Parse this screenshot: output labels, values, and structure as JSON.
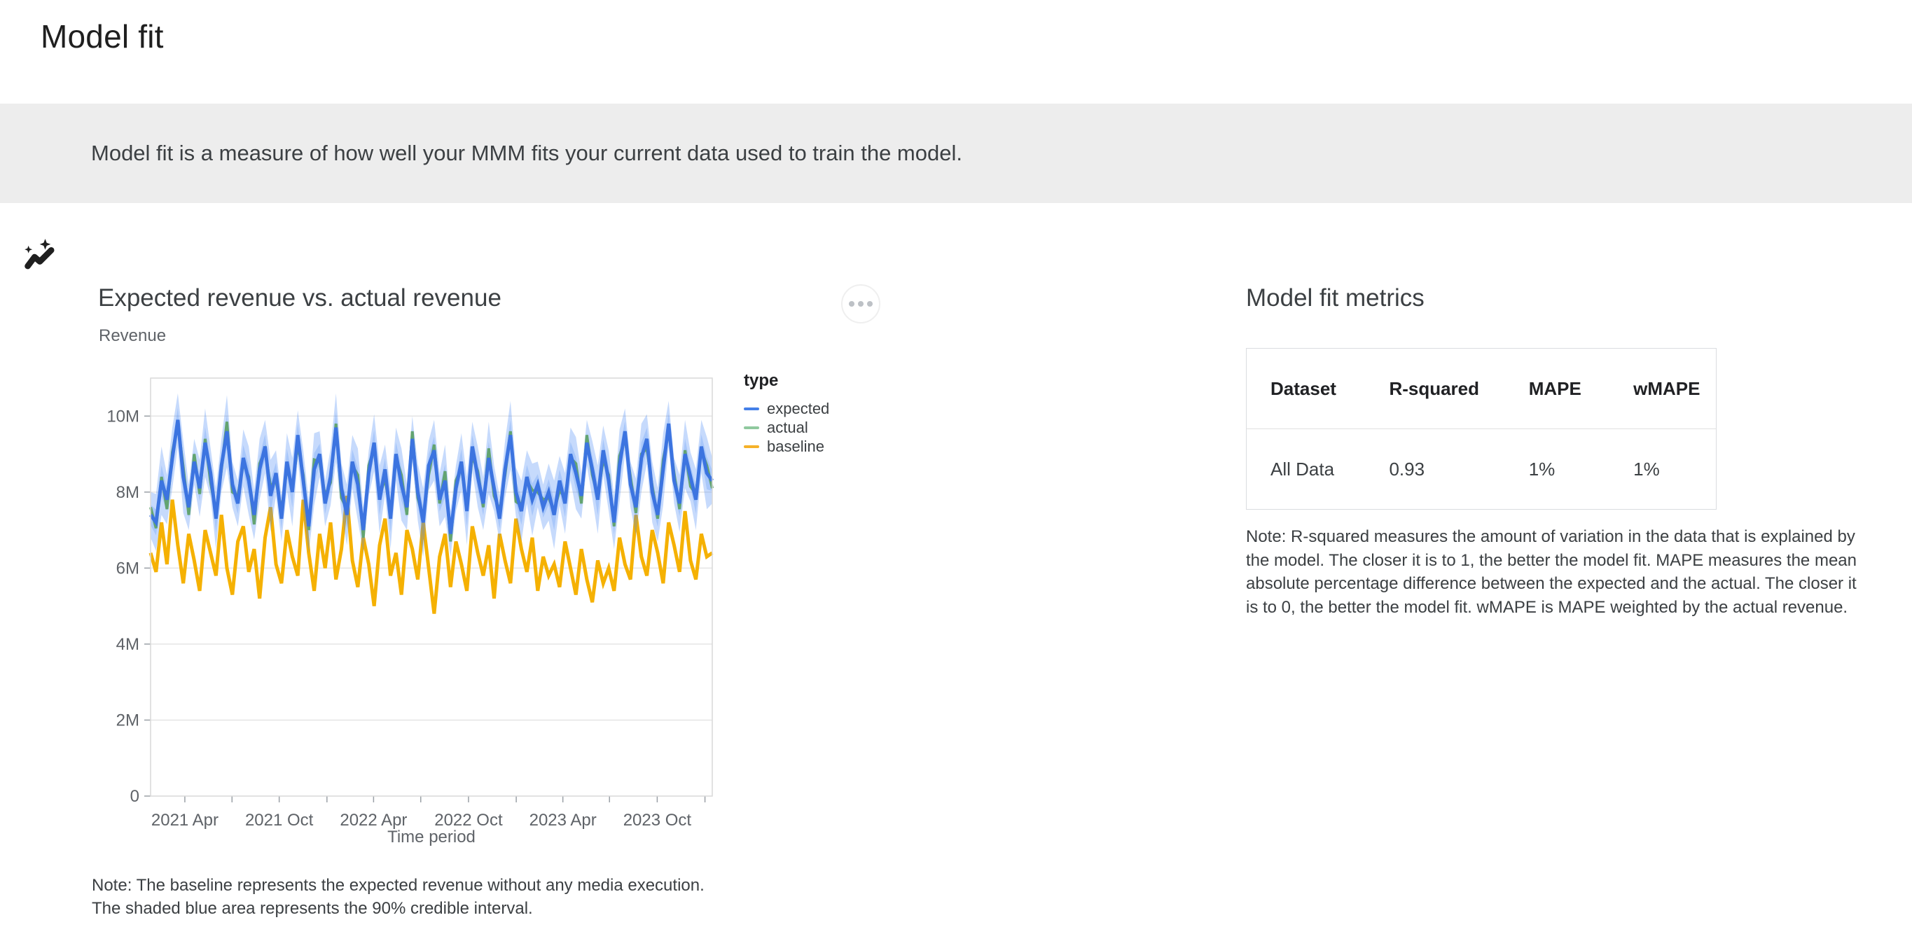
{
  "page": {
    "title": "Model fit"
  },
  "banner": {
    "icon": "insights-icon",
    "text": "Model fit is a measure of how well your MMM fits your current data used to train the model."
  },
  "chart_section": {
    "title": "Expected revenue vs. actual revenue",
    "subtitle": "Revenue",
    "note": "Note: The baseline represents the expected revenue without any media execution. The shaded blue area represents the 90% credible interval.",
    "more_button": "more options"
  },
  "chart_data": {
    "type": "line",
    "title": "Expected revenue vs. actual revenue",
    "ylabel": "Revenue",
    "xlabel": "Time period",
    "units": "revenue in millions",
    "x_range": "2021 Jan to 2024 Jan, weekly",
    "ylim": [
      0,
      11
    ],
    "grid": "horizontal only",
    "y_ticks": [
      {
        "value": 0,
        "label": "0"
      },
      {
        "value": 2,
        "label": "2M"
      },
      {
        "value": 4,
        "label": "4M"
      },
      {
        "value": 6,
        "label": "6M"
      },
      {
        "value": 8,
        "label": "8M"
      },
      {
        "value": 10,
        "label": "10M"
      }
    ],
    "x_ticks_major": [
      {
        "f": 0.061,
        "label": "2021 Apr"
      },
      {
        "f": 0.229,
        "label": "2021 Oct"
      },
      {
        "f": 0.397,
        "label": "2022 Apr"
      },
      {
        "f": 0.566,
        "label": "2022 Oct"
      },
      {
        "f": 0.734,
        "label": "2023 Apr"
      },
      {
        "f": 0.902,
        "label": "2023 Oct"
      }
    ],
    "x_ticks_minor": [
      0.145,
      0.314,
      0.481,
      0.651,
      0.817,
      0.987
    ],
    "legend": {
      "title": "type",
      "position": "right",
      "items": [
        {
          "label": "expected",
          "color": "#4480E8"
        },
        {
          "label": "actual",
          "color": "#8FC99E"
        },
        {
          "label": "baseline",
          "color": "#F5B129"
        }
      ]
    },
    "band": {
      "label": "90% credible interval",
      "color": "#4285F4",
      "outer_alpha": 0.3,
      "inner_alpha": 0.22
    },
    "line_colors": {
      "expected": "#3C74E0",
      "actual": "#63A471",
      "baseline": "#F5B102"
    },
    "series": {
      "expected": [
        7.4,
        7.2,
        8.3,
        7.8,
        8.9,
        9.9,
        8.4,
        7.6,
        8.8,
        8.1,
        9.3,
        8.5,
        7.3,
        8.7,
        9.6,
        8.2,
        7.7,
        8.9,
        8.3,
        7.4,
        8.6,
        9.2,
        7.9,
        8.5,
        7.3,
        8.8,
        8.0,
        9.5,
        8.3,
        7.1,
        8.6,
        9.0,
        7.7,
        8.4,
        9.7,
        8.1,
        7.4,
        8.8,
        8.2,
        7.0,
        8.5,
        9.3,
        7.8,
        8.6,
        7.3,
        9.0,
        8.2,
        7.6,
        9.4,
        8.0,
        7.2,
        8.7,
        9.1,
        7.8,
        8.3,
        6.9,
        8.1,
        8.8,
        7.5,
        9.2,
        8.4,
        7.7,
        8.9,
        8.1,
        7.3,
        8.6,
        9.5,
        8.0,
        7.5,
        8.4,
        7.8,
        8.2,
        7.6,
        8.0,
        7.4,
        8.3,
        7.7,
        9.0,
        8.5,
        7.9,
        9.3,
        8.6,
        7.8,
        9.1,
        8.3,
        7.2,
        8.7,
        9.6,
        8.2,
        7.6,
        8.9,
        9.4,
        8.0,
        7.4,
        8.6,
        9.8,
        8.3,
        7.7,
        9.0,
        8.4,
        7.8,
        9.2,
        8.5,
        8.3
      ],
      "actual": [
        7.6,
        7.05,
        8.4,
        7.55,
        9.05,
        9.8,
        8.65,
        7.4,
        9.0,
        7.95,
        9.4,
        8.25,
        7.45,
        8.6,
        9.85,
        8.0,
        7.9,
        8.75,
        8.4,
        7.15,
        8.75,
        9.1,
        8.15,
        8.3,
        7.5,
        8.65,
        8.1,
        9.25,
        8.45,
        7.0,
        8.85,
        8.8,
        7.9,
        8.25,
        9.8,
        7.85,
        7.55,
        8.7,
        8.45,
        6.8,
        8.7,
        9.15,
        7.9,
        8.35,
        7.45,
        8.9,
        8.45,
        7.4,
        9.6,
        7.85,
        7.3,
        8.45,
        9.25,
        7.7,
        8.55,
        6.7,
        8.3,
        8.65,
        7.6,
        8.95,
        8.55,
        7.6,
        9.15,
        7.9,
        7.5,
        8.45,
        9.6,
        7.75,
        7.65,
        8.3,
        8.05,
        8.0,
        7.8,
        7.85,
        7.5,
        8.05,
        7.85,
        8.9,
        8.75,
        7.7,
        9.5,
        8.45,
        7.9,
        8.85,
        8.45,
        7.1,
        8.95,
        9.4,
        8.4,
        7.45,
        9.0,
        9.15,
        8.15,
        7.3,
        8.85,
        9.6,
        8.5,
        7.55,
        9.1,
        8.15,
        7.95,
        9.1,
        8.7,
        8.1
      ],
      "baseline": [
        6.4,
        5.9,
        7.2,
        6.1,
        7.8,
        6.6,
        5.6,
        6.9,
        6.2,
        5.4,
        7.0,
        6.4,
        5.8,
        7.4,
        6.0,
        5.3,
        6.7,
        7.1,
        5.9,
        6.5,
        5.2,
        6.8,
        7.6,
        6.1,
        5.6,
        7.0,
        6.3,
        5.8,
        7.8,
        6.4,
        5.4,
        6.9,
        6.0,
        7.2,
        5.7,
        6.5,
        7.9,
        6.2,
        5.5,
        6.8,
        6.1,
        5.0,
        6.6,
        7.3,
        5.8,
        6.4,
        5.3,
        7.0,
        6.5,
        5.7,
        7.2,
        6.0,
        4.8,
        6.3,
        6.9,
        5.5,
        6.7,
        6.1,
        5.4,
        7.1,
        6.4,
        5.8,
        6.6,
        5.2,
        6.9,
        6.2,
        5.6,
        7.3,
        6.5,
        5.9,
        6.8,
        5.4,
        6.3,
        5.8,
        6.1,
        5.5,
        6.7,
        6.0,
        5.3,
        6.5,
        5.7,
        5.1,
        6.2,
        5.6,
        6.0,
        5.4,
        6.8,
        6.1,
        5.7,
        7.4,
        6.3,
        5.8,
        7.0,
        6.4,
        5.6,
        7.2,
        6.6,
        5.9,
        7.5,
        6.2,
        5.7,
        6.9,
        6.3,
        6.4
      ],
      "ci_upper": [
        8.0,
        7.95,
        9.2,
        8.45,
        9.7,
        10.6,
        9.35,
        8.2,
        9.4,
        8.85,
        10.2,
        9.15,
        8.1,
        9.4,
        10.55,
        8.8,
        8.3,
        9.65,
        9.2,
        8.05,
        9.4,
        9.9,
        8.85,
        9.1,
        7.9,
        9.55,
        8.9,
        10.15,
        9.1,
        7.8,
        9.55,
        9.6,
        8.3,
        9.15,
        10.6,
        8.75,
        8.2,
        9.5,
        9.15,
        7.6,
        9.1,
        10.05,
        8.7,
        9.25,
        8.1,
        9.7,
        9.15,
        8.2,
        10.0,
        8.75,
        8.1,
        9.35,
        9.9,
        8.5,
        9.25,
        7.5,
        8.7,
        9.55,
        8.4,
        9.85,
        9.2,
        8.4,
        9.85,
        8.7,
        7.9,
        9.35,
        10.4,
        8.65,
        8.3,
        9.1,
        8.75,
        8.8,
        8.2,
        8.75,
        8.3,
        8.95,
        8.5,
        9.7,
        9.45,
        8.5,
        9.9,
        9.35,
        8.7,
        9.75,
        9.1,
        7.9,
        9.65,
        10.2,
        8.8,
        8.35,
        9.8,
        10.05,
        8.8,
        8.1,
        9.55,
        10.4,
        8.9,
        8.45,
        9.9,
        9.05,
        8.6,
        9.9,
        9.45,
        8.9
      ],
      "ci_lower": [
        6.8,
        6.45,
        7.4,
        7.15,
        8.1,
        9.2,
        7.45,
        7.0,
        8.2,
        7.35,
        8.4,
        7.85,
        6.5,
        8.0,
        8.65,
        7.6,
        7.1,
        8.15,
        7.4,
        6.75,
        7.8,
        8.5,
        6.95,
        7.9,
        6.7,
        8.05,
        7.1,
        8.85,
        7.5,
        6.4,
        7.65,
        8.4,
        7.1,
        7.65,
        8.8,
        7.45,
        6.6,
        8.1,
        7.25,
        6.4,
        7.9,
        8.55,
        6.9,
        7.95,
        6.5,
        8.3,
        7.25,
        7.0,
        8.8,
        7.25,
        6.3,
        8.05,
        8.3,
        7.1,
        7.35,
        6.3,
        7.5,
        8.05,
        6.6,
        8.55,
        7.6,
        7.0,
        7.95,
        7.5,
        6.7,
        7.85,
        8.6,
        7.35,
        6.7,
        7.7,
        6.85,
        7.6,
        7.0,
        7.25,
        6.5,
        7.65,
        6.9,
        8.3,
        7.55,
        7.3,
        8.7,
        7.85,
        6.9,
        8.45,
        7.5,
        6.5,
        7.75,
        9.0,
        7.6,
        6.85,
        8.0,
        8.75,
        7.2,
        6.7,
        7.65,
        9.2,
        7.7,
        6.95,
        8.1,
        7.75,
        7.0,
        8.5,
        7.55,
        7.7
      ]
    }
  },
  "metrics": {
    "title": "Model fit metrics",
    "table": {
      "headers": [
        "Dataset",
        "R-squared",
        "MAPE",
        "wMAPE"
      ],
      "rows": [
        [
          "All Data",
          "0.93",
          "1%",
          "1%"
        ]
      ]
    },
    "note": "Note: R-squared measures the amount of variation in the data that is explained by the model. The closer it is to 1, the better the model fit. MAPE measures the mean absolute percentage difference between the expected and the actual. The closer it is to 0, the better the model fit. wMAPE is MAPE weighted by the actual revenue."
  },
  "colors": {
    "banner_bg": "#EDEDED",
    "text_primary": "#202124",
    "text_secondary": "#3C4043",
    "text_muted": "#5F6368",
    "grid": "#E4E4E4",
    "plot_border": "#D9D9D9",
    "table_border": "#DADCE0"
  }
}
